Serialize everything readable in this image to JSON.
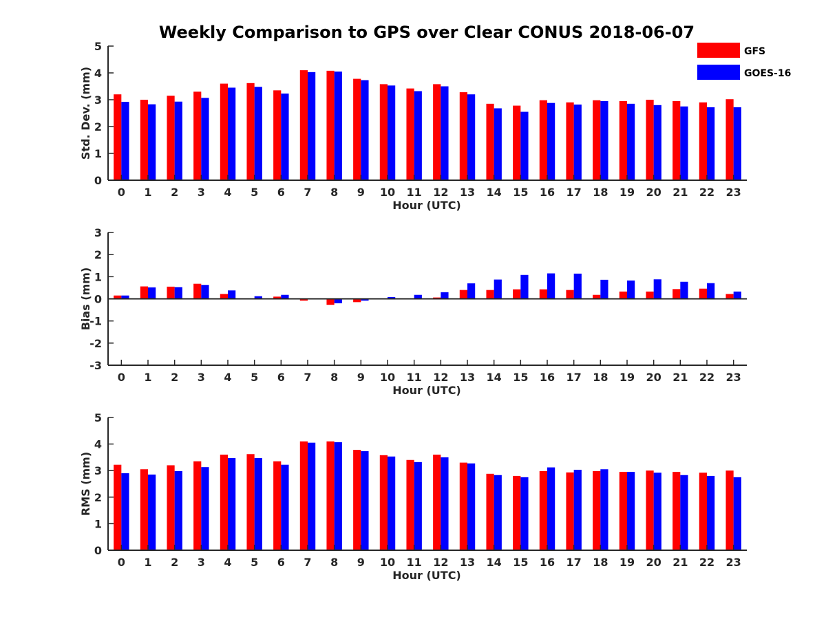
{
  "title": "Weekly Comparison to GPS over Clear CONUS 2018-06-07",
  "colors": {
    "gfs": "#ff0000",
    "goes16": "#0000ff",
    "axis": "#262626",
    "background": "#ffffff"
  },
  "legend": {
    "position": "top-right",
    "items": [
      {
        "name": "GFS",
        "color": "#ff0000"
      },
      {
        "name": "GOES-16",
        "color": "#0000ff"
      }
    ]
  },
  "chart_data": [
    {
      "type": "bar",
      "title": "",
      "xlabel": "Hour (UTC)",
      "ylabel": "Std. Dev. (mm)",
      "ylim": [
        0,
        5
      ],
      "yticks": [
        "0",
        "1",
        "2",
        "3",
        "4",
        "5"
      ],
      "categories": [
        "0",
        "1",
        "2",
        "3",
        "4",
        "5",
        "6",
        "7",
        "8",
        "9",
        "10",
        "11",
        "12",
        "13",
        "14",
        "15",
        "16",
        "17",
        "18",
        "19",
        "20",
        "21",
        "22",
        "23"
      ],
      "series": [
        {
          "name": "GFS",
          "values": [
            3.2,
            3.0,
            3.15,
            3.3,
            3.6,
            3.62,
            3.35,
            4.1,
            4.08,
            3.78,
            3.58,
            3.42,
            3.58,
            3.28,
            2.85,
            2.78,
            2.98,
            2.9,
            2.98,
            2.95,
            3.0,
            2.95,
            2.9,
            3.02
          ]
        },
        {
          "name": "GOES-16",
          "values": [
            2.92,
            2.83,
            2.93,
            3.07,
            3.45,
            3.48,
            3.23,
            4.03,
            4.05,
            3.73,
            3.53,
            3.32,
            3.5,
            3.2,
            2.68,
            2.55,
            2.88,
            2.82,
            2.95,
            2.85,
            2.8,
            2.75,
            2.72,
            2.72
          ]
        }
      ]
    },
    {
      "type": "bar",
      "title": "",
      "xlabel": "Hour (UTC)",
      "ylabel": "Bias (mm)",
      "ylim": [
        -3,
        3
      ],
      "yticks": [
        "-3",
        "-2",
        "-1",
        "0",
        "1",
        "2",
        "3"
      ],
      "categories": [
        "0",
        "1",
        "2",
        "3",
        "4",
        "5",
        "6",
        "7",
        "8",
        "9",
        "10",
        "11",
        "12",
        "13",
        "14",
        "15",
        "16",
        "17",
        "18",
        "19",
        "20",
        "21",
        "22",
        "23"
      ],
      "series": [
        {
          "name": "GFS",
          "values": [
            0.15,
            0.56,
            0.55,
            0.68,
            0.22,
            0.0,
            0.1,
            -0.08,
            -0.27,
            -0.15,
            0.0,
            0.02,
            0.06,
            0.4,
            0.4,
            0.43,
            0.43,
            0.4,
            0.18,
            0.33,
            0.33,
            0.44,
            0.46,
            0.22
          ]
        },
        {
          "name": "GOES-16",
          "values": [
            0.15,
            0.52,
            0.53,
            0.63,
            0.38,
            0.12,
            0.18,
            0.02,
            -0.2,
            -0.08,
            0.08,
            0.18,
            0.3,
            0.7,
            0.87,
            1.08,
            1.15,
            1.14,
            0.86,
            0.83,
            0.88,
            0.77,
            0.71,
            0.33
          ]
        }
      ]
    },
    {
      "type": "bar",
      "title": "",
      "xlabel": "Hour (UTC)",
      "ylabel": "RMS (mm)",
      "ylim": [
        0,
        5
      ],
      "yticks": [
        "0",
        "1",
        "2",
        "3",
        "4",
        "5"
      ],
      "categories": [
        "0",
        "1",
        "2",
        "3",
        "4",
        "5",
        "6",
        "7",
        "8",
        "9",
        "10",
        "11",
        "12",
        "13",
        "14",
        "15",
        "16",
        "17",
        "18",
        "19",
        "20",
        "21",
        "22",
        "23"
      ],
      "series": [
        {
          "name": "GFS",
          "values": [
            3.22,
            3.05,
            3.2,
            3.35,
            3.6,
            3.62,
            3.35,
            4.1,
            4.1,
            3.78,
            3.58,
            3.4,
            3.6,
            3.3,
            2.88,
            2.8,
            2.98,
            2.93,
            2.98,
            2.95,
            3.0,
            2.95,
            2.92,
            3.0
          ]
        },
        {
          "name": "GOES-16",
          "values": [
            2.9,
            2.85,
            2.98,
            3.13,
            3.47,
            3.47,
            3.22,
            4.05,
            4.07,
            3.73,
            3.53,
            3.32,
            3.5,
            3.27,
            2.83,
            2.75,
            3.12,
            3.03,
            3.05,
            2.95,
            2.92,
            2.83,
            2.8,
            2.75
          ]
        }
      ]
    }
  ]
}
